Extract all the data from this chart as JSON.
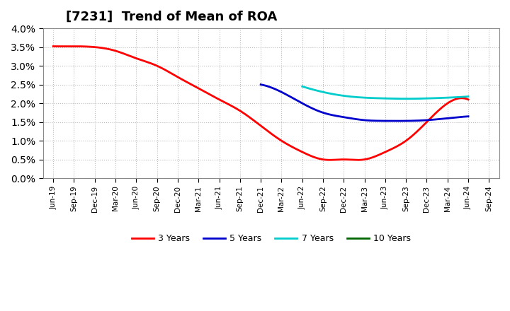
{
  "title": "[7231]  Trend of Mean of ROA",
  "background_color": "#ffffff",
  "plot_bg_color": "#ffffff",
  "grid_color": "#aaaaaa",
  "ylim": [
    0.0,
    0.04
  ],
  "yticks": [
    0.0,
    0.005,
    0.01,
    0.015,
    0.02,
    0.025,
    0.03,
    0.035,
    0.04
  ],
  "x_labels": [
    "Jun-19",
    "Sep-19",
    "Dec-19",
    "Mar-20",
    "Jun-20",
    "Sep-20",
    "Dec-20",
    "Mar-21",
    "Jun-21",
    "Sep-21",
    "Dec-21",
    "Mar-22",
    "Jun-22",
    "Sep-22",
    "Dec-22",
    "Mar-23",
    "Jun-23",
    "Sep-23",
    "Dec-23",
    "Mar-24",
    "Jun-24",
    "Sep-24"
  ],
  "series": {
    "3 Years": {
      "color": "#ff0000",
      "data": [
        0.0352,
        0.0352,
        0.035,
        0.034,
        0.032,
        0.03,
        0.027,
        0.024,
        0.021,
        0.018,
        0.014,
        0.01,
        0.007,
        0.005,
        0.005,
        0.005,
        0.007,
        0.01,
        0.015,
        0.02,
        0.021,
        null
      ]
    },
    "5 Years": {
      "color": "#0000cc",
      "data": [
        null,
        null,
        null,
        null,
        null,
        null,
        null,
        null,
        null,
        null,
        0.025,
        0.023,
        0.02,
        0.0175,
        0.0163,
        0.0155,
        0.0153,
        0.0153,
        0.0155,
        0.016,
        0.0165,
        null
      ]
    },
    "7 Years": {
      "color": "#00cccc",
      "data": [
        null,
        null,
        null,
        null,
        null,
        null,
        null,
        null,
        null,
        null,
        null,
        null,
        0.0245,
        0.023,
        0.022,
        0.0215,
        0.0213,
        0.0212,
        0.0213,
        0.0215,
        0.0218,
        null
      ]
    },
    "10 Years": {
      "color": "#006600",
      "data": [
        null,
        null,
        null,
        null,
        null,
        null,
        null,
        null,
        null,
        null,
        null,
        null,
        null,
        null,
        null,
        null,
        null,
        null,
        null,
        null,
        null,
        null
      ]
    }
  },
  "legend_order": [
    "3 Years",
    "5 Years",
    "7 Years",
    "10 Years"
  ]
}
